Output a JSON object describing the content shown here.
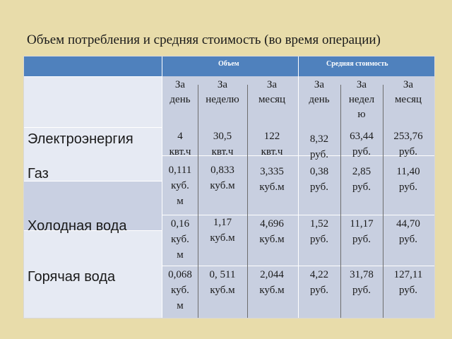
{
  "title": "Объем потребления и средняя стоимость (во время операции)",
  "groups": {
    "volume": "Объем",
    "avg_cost": "Средняя стоимость"
  },
  "columns": [
    "За\nдень",
    "За\nнеделю",
    "За\nмесяц",
    "За\nдень",
    "За\nнедел\nю",
    "За\nмесяц"
  ],
  "rows": [
    {
      "label": "Электроэнергия",
      "values": [
        "4\nквт.ч",
        "30,5\nквт.ч",
        "122\nквт.ч",
        "8,32\nруб.",
        "63,44\nруб.",
        "253,76\nруб."
      ]
    },
    {
      "label": "Газ",
      "values": [
        "0,111\nкуб.\nм",
        "0,833\nкуб.м",
        "3,335\nкуб.м",
        "0,38\nруб.",
        "2,85\nруб.",
        "11,40\nруб."
      ]
    },
    {
      "label": "Холодная вода",
      "values": [
        "0,16\nкуб.\nм",
        "1,17\nкуб.м",
        "4,696\nкуб.м",
        "1,52\nруб.",
        "11,17\nруб.",
        "44,70\nруб."
      ]
    },
    {
      "label": "Горячая вода",
      "values": [
        "0,068\nкуб.\nм",
        "0, 511\nкуб.м",
        "2,044\nкуб.м",
        "4,22\nруб.",
        "31,78\nруб.",
        "127,11\nруб."
      ]
    }
  ]
}
